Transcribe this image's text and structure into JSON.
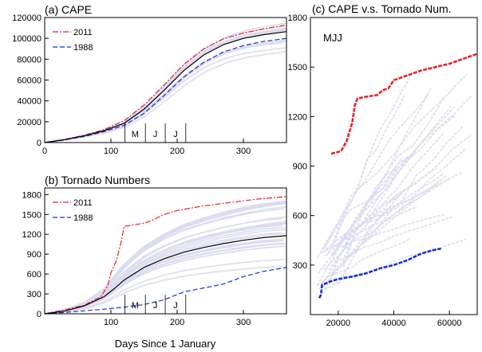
{
  "months": [
    "M",
    "J",
    "J"
  ],
  "chart_data": [
    {
      "type": "line",
      "title": "(a) CAPE",
      "xlabel": "",
      "ylabel": "",
      "xlim": [
        0,
        365
      ],
      "ylim": [
        0,
        120000
      ],
      "xticks": [
        0,
        100,
        200,
        300
      ],
      "yticks": [
        0,
        20000,
        40000,
        60000,
        80000,
        100000,
        120000
      ],
      "month_marks": [
        121,
        152,
        182,
        213
      ],
      "legend": {
        "position": "top-left",
        "entries": [
          "2011",
          "1988"
        ]
      },
      "series": [
        {
          "name": "2011",
          "color": "#e8202a",
          "dash": "dashdot",
          "x": [
            0,
            30,
            60,
            90,
            120,
            150,
            180,
            210,
            240,
            270,
            300,
            330,
            365
          ],
          "y": [
            0,
            3000,
            7000,
            12500,
            21000,
            36000,
            55000,
            75000,
            90000,
            99500,
            105000,
            109000,
            113000
          ]
        },
        {
          "name": "1988",
          "color": "#1a2fd6",
          "dash": "dash",
          "x": [
            0,
            30,
            60,
            90,
            120,
            150,
            180,
            210,
            240,
            270,
            300,
            330,
            365
          ],
          "y": [
            0,
            2500,
            6000,
            10500,
            16500,
            28000,
            45000,
            63000,
            77000,
            87000,
            93000,
            97000,
            100000
          ]
        },
        {
          "name": "",
          "color": "#000000",
          "dash": "solid",
          "x": [
            0,
            30,
            60,
            90,
            120,
            150,
            180,
            210,
            240,
            270,
            300,
            330,
            365
          ],
          "y": [
            0,
            2800,
            6500,
            11500,
            18500,
            32000,
            50000,
            69000,
            84000,
            94000,
            100000,
            103500,
            106500
          ]
        }
      ]
    },
    {
      "type": "line",
      "title": "(b) Tornado Numbers",
      "xlabel": "Days Since 1 January",
      "ylabel": "",
      "xlim": [
        0,
        365
      ],
      "ylim": [
        0,
        1900
      ],
      "xticks": [
        100,
        200,
        300
      ],
      "yticks": [
        0,
        300,
        600,
        900,
        1200,
        1500,
        1800
      ],
      "month_marks": [
        121,
        152,
        182,
        213
      ],
      "legend": {
        "position": "top-left",
        "entries": [
          "2011",
          "1988"
        ]
      },
      "series": [
        {
          "name": "2011",
          "color": "#e8202a",
          "dash": "dashdot",
          "x": [
            0,
            30,
            60,
            85,
            95,
            100,
            108,
            115,
            120,
            140,
            150,
            160,
            170,
            180,
            200,
            240,
            280,
            320,
            365
          ],
          "y": [
            0,
            60,
            130,
            260,
            420,
            620,
            800,
            1070,
            1320,
            1350,
            1370,
            1400,
            1450,
            1500,
            1560,
            1630,
            1680,
            1730,
            1770
          ]
        },
        {
          "name": "1988",
          "color": "#1a2fd6",
          "dash": "dash",
          "x": [
            0,
            30,
            60,
            90,
            120,
            150,
            180,
            210,
            240,
            270,
            300,
            330,
            365
          ],
          "y": [
            0,
            20,
            45,
            70,
            100,
            140,
            210,
            330,
            390,
            450,
            560,
            640,
            700
          ]
        },
        {
          "name": "",
          "color": "#000000",
          "dash": "solid",
          "x": [
            0,
            30,
            60,
            90,
            105,
            120,
            150,
            180,
            210,
            240,
            270,
            300,
            330,
            365
          ],
          "y": [
            0,
            40,
            120,
            260,
            380,
            510,
            700,
            830,
            930,
            1000,
            1060,
            1110,
            1150,
            1180
          ]
        }
      ]
    },
    {
      "type": "scatter",
      "title": "(c) CAPE v.s. Tornado Num.",
      "annotation": "MJJ",
      "xlabel": "",
      "ylabel": "",
      "xlim": [
        10000,
        70000
      ],
      "ylim": [
        0,
        1800
      ],
      "xticks": [
        20000,
        40000,
        60000
      ],
      "yticks": [
        300,
        600,
        900,
        1200,
        1500,
        1800
      ],
      "series": [
        {
          "name": "2011",
          "color": "#e8202a",
          "x": [
            17500,
            21000,
            23000,
            25000,
            26000,
            27000,
            30000,
            34000,
            36000,
            38000,
            40000,
            45000,
            50000,
            55000,
            60000,
            65000,
            70000
          ],
          "y": [
            975,
            990,
            1050,
            1160,
            1270,
            1310,
            1320,
            1330,
            1360,
            1370,
            1420,
            1450,
            1480,
            1500,
            1520,
            1550,
            1580
          ]
        },
        {
          "name": "1988",
          "color": "#1a2fd6",
          "x": [
            13200,
            13800,
            14200,
            15000,
            17000,
            20000,
            25000,
            30000,
            35000,
            40000,
            45000,
            50000,
            54000,
            57000
          ],
          "y": [
            100,
            120,
            180,
            185,
            200,
            215,
            230,
            250,
            280,
            300,
            330,
            370,
            390,
            400
          ]
        }
      ]
    }
  ]
}
